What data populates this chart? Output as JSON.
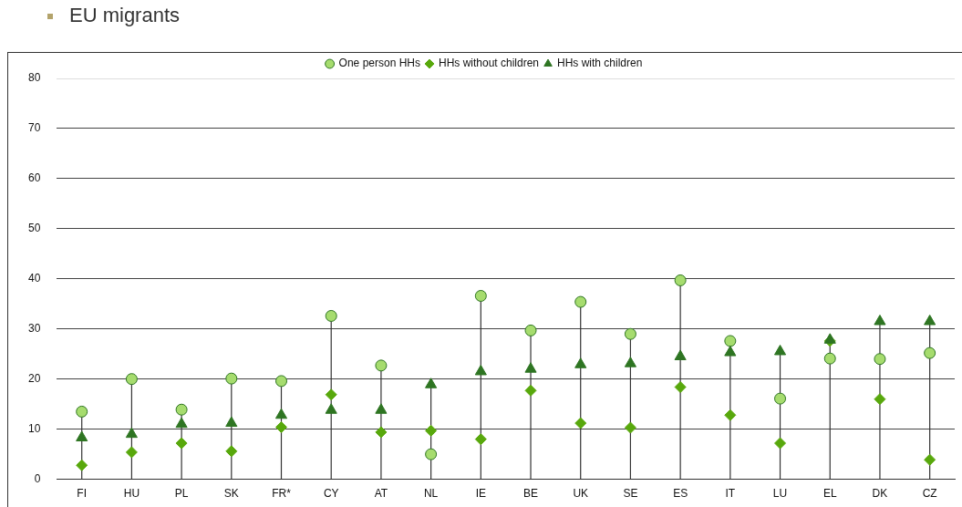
{
  "chart_data": {
    "type": "scatter",
    "title": "EU migrants",
    "categories": [
      "FI",
      "HU",
      "PL",
      "SK",
      "FR*",
      "CY",
      "AT",
      "NL",
      "IE",
      "BE",
      "UK",
      "SE",
      "ES",
      "IT",
      "LU",
      "EL",
      "DK",
      "CZ"
    ],
    "series": [
      {
        "name": "One person HHs",
        "color": "#a6dc6e",
        "marker": "circle",
        "values": [
          13.5,
          20.0,
          13.9,
          20.1,
          19.6,
          32.6,
          22.7,
          5.0,
          36.6,
          29.7,
          35.4,
          29.0,
          39.7,
          27.6,
          16.1,
          24.1,
          24.0,
          25.2
        ]
      },
      {
        "name": "HHs without children",
        "color": "#58a80c",
        "marker": "diamond",
        "values": [
          2.8,
          5.4,
          7.2,
          5.6,
          10.4,
          16.9,
          9.4,
          9.7,
          8.0,
          17.7,
          11.2,
          10.3,
          18.4,
          12.8,
          7.2,
          27.6,
          16.0,
          3.9
        ]
      },
      {
        "name": "HHs with children",
        "color": "#2e7522",
        "marker": "triangle",
        "values": [
          8.3,
          9.0,
          11.0,
          11.2,
          12.8,
          13.8,
          13.8,
          18.9,
          21.5,
          22.0,
          22.9,
          23.1,
          24.5,
          25.3,
          25.5,
          27.8,
          31.5,
          31.5
        ]
      }
    ],
    "ylim": [
      0,
      80
    ],
    "yticks": [
      0,
      10,
      20,
      30,
      40,
      50,
      60,
      70,
      80
    ],
    "grid": "y",
    "legend": "top"
  }
}
